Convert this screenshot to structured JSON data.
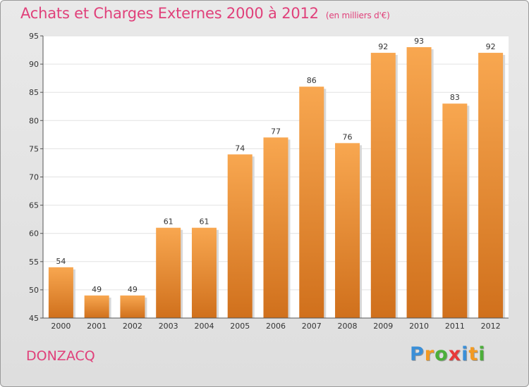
{
  "chart_data": {
    "type": "bar",
    "title": "Achats et Charges Externes 2000 à 2012",
    "subtitle": "(en milliers d'€)",
    "categories": [
      "2000",
      "2001",
      "2002",
      "2003",
      "2004",
      "2005",
      "2006",
      "2007",
      "2008",
      "2009",
      "2010",
      "2011",
      "2012"
    ],
    "values": [
      54,
      49,
      49,
      61,
      61,
      74,
      77,
      86,
      76,
      92,
      93,
      83,
      92
    ],
    "ylim": [
      45,
      95
    ],
    "yticks": [
      45,
      50,
      55,
      60,
      65,
      70,
      75,
      80,
      85,
      90,
      95
    ],
    "grid": true,
    "bar_color_top": "#f8a750",
    "bar_color_bottom": "#d0701c"
  },
  "footer": {
    "commune": "DONZACQ",
    "logo": [
      "P",
      "r",
      "o",
      "x",
      "i",
      "t",
      "i"
    ],
    "logo_colors": [
      "#3a8fd8",
      "#f39a22",
      "#4caf3a",
      "#e83a3a",
      "#3a8fd8",
      "#f39a22",
      "#4caf3a"
    ]
  }
}
